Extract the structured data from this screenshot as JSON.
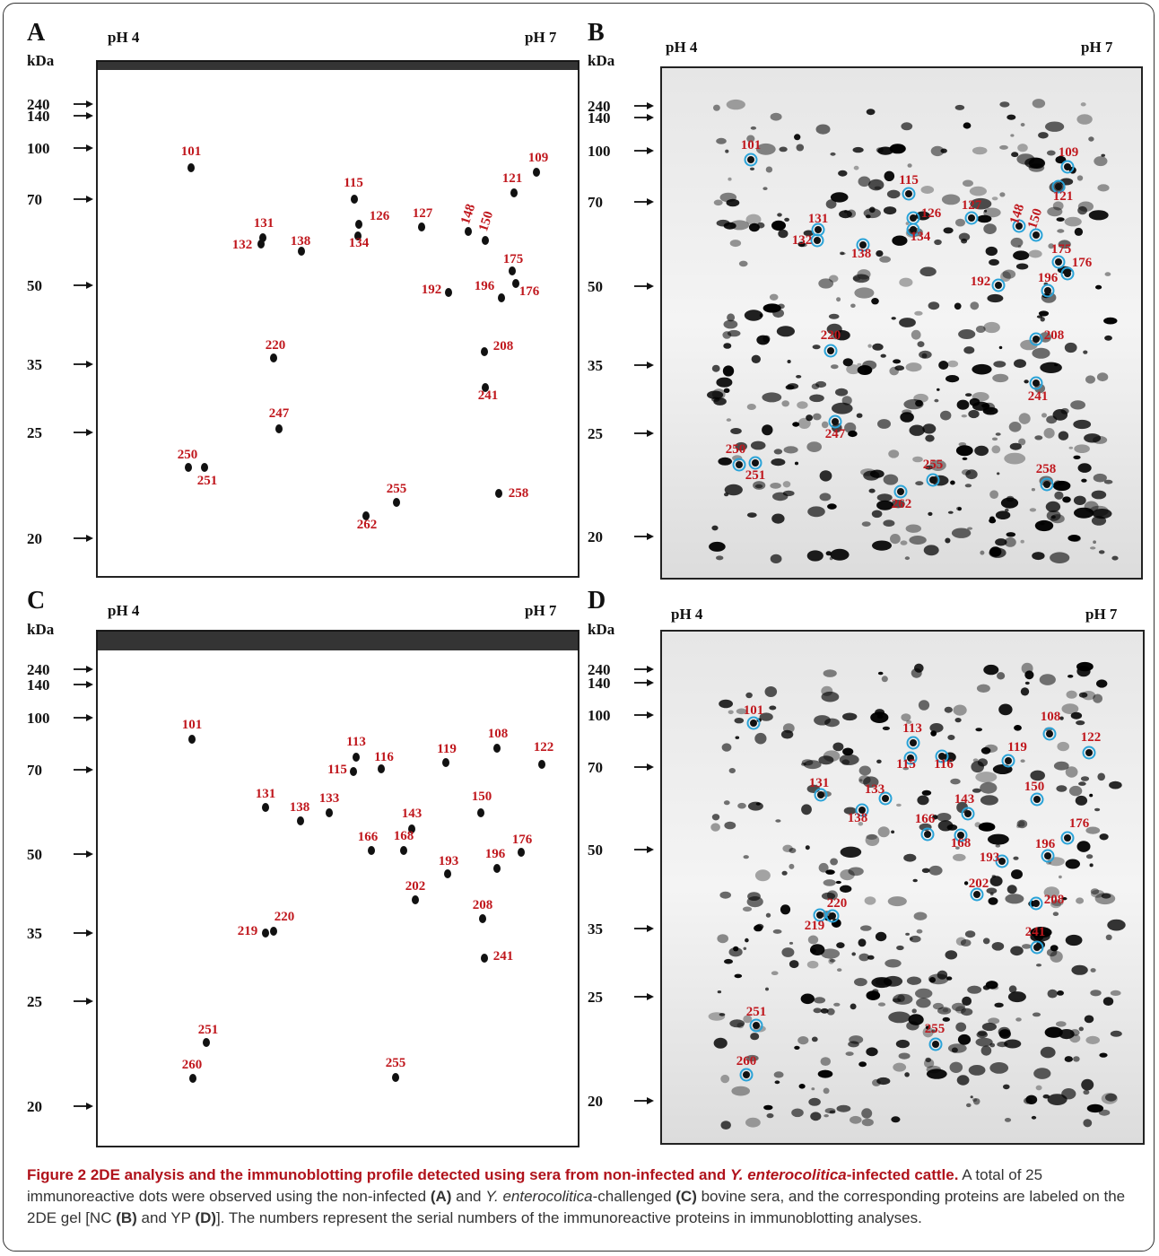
{
  "panels": [
    {
      "letter": "A",
      "ph_left": "pH 4",
      "ph_right": "pH 7",
      "unit": "kDa",
      "markers": [
        "240",
        "140",
        "100",
        "70",
        "50",
        "35",
        "25",
        "20"
      ],
      "spots": [
        "101",
        "109",
        "115",
        "121",
        "131",
        "126",
        "127",
        "148",
        "150",
        "132",
        "138",
        "134",
        "175",
        "192",
        "196",
        "176",
        "220",
        "208",
        "241",
        "247",
        "250",
        "251",
        "255",
        "258",
        "262"
      ]
    },
    {
      "letter": "B",
      "ph_left": "pH 4",
      "ph_right": "pH 7",
      "unit": "kDa",
      "markers": [
        "240",
        "140",
        "100",
        "70",
        "50",
        "35",
        "25",
        "20"
      ],
      "spots": [
        "101",
        "109",
        "115",
        "121",
        "131",
        "126",
        "127",
        "148",
        "150",
        "132",
        "138",
        "134",
        "175",
        "192",
        "196",
        "176",
        "220",
        "208",
        "241",
        "247",
        "250",
        "251",
        "255",
        "258",
        "262"
      ]
    },
    {
      "letter": "C",
      "ph_left": "pH 4",
      "ph_right": "pH 7",
      "unit": "kDa",
      "markers": [
        "240",
        "140",
        "100",
        "70",
        "50",
        "35",
        "25",
        "20"
      ],
      "spots": [
        "101",
        "113",
        "115",
        "116",
        "119",
        "108",
        "122",
        "131",
        "138",
        "133",
        "143",
        "150",
        "166",
        "168",
        "176",
        "193",
        "196",
        "202",
        "208",
        "220",
        "219",
        "241",
        "251",
        "260",
        "255"
      ]
    },
    {
      "letter": "D",
      "ph_left": "pH 4",
      "ph_right": "pH 7",
      "unit": "kDa",
      "markers": [
        "240",
        "140",
        "100",
        "70",
        "50",
        "35",
        "25",
        "20"
      ],
      "spots": [
        "101",
        "113",
        "115",
        "116",
        "119",
        "108",
        "122",
        "131",
        "138",
        "133",
        "143",
        "150",
        "166",
        "168",
        "176",
        "193",
        "196",
        "202",
        "208",
        "220",
        "219",
        "241",
        "251",
        "260",
        "255"
      ]
    }
  ],
  "caption": {
    "title": [
      "Figure 2 2DE analysis and the immunoblotting profile detected using sera from non-infected and ",
      "Y. enterocolitica",
      "-infected cattle."
    ],
    "body": [
      "A total of 25 immunoreactive dots were observed using the non-infected ",
      "(A)",
      " and ",
      "Y. enterocolitica",
      "-challenged ",
      "(C)",
      " bovine sera, and the corresponding proteins are labeled on the 2DE gel [NC ",
      "(B)",
      " and YP ",
      "(D)",
      "]. The numbers represent the serial numbers of the immunoreactive proteins in immunoblotting analyses."
    ]
  }
}
